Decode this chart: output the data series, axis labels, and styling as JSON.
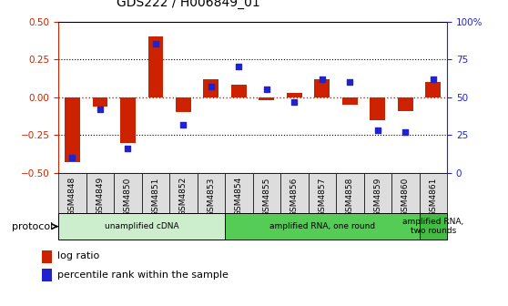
{
  "title": "GDS222 / H006849_01",
  "samples": [
    "GSM4848",
    "GSM4849",
    "GSM4850",
    "GSM4851",
    "GSM4852",
    "GSM4853",
    "GSM4854",
    "GSM4855",
    "GSM4856",
    "GSM4857",
    "GSM4858",
    "GSM4859",
    "GSM4860",
    "GSM4861"
  ],
  "log_ratio": [
    -0.43,
    -0.06,
    -0.3,
    0.4,
    -0.1,
    0.12,
    0.08,
    -0.02,
    0.03,
    0.12,
    -0.05,
    -0.15,
    -0.09,
    0.1
  ],
  "percentile_rank": [
    10,
    42,
    16,
    85,
    32,
    57,
    70,
    55,
    47,
    62,
    60,
    28,
    27,
    62
  ],
  "ylim_left": [
    -0.5,
    0.5
  ],
  "ylim_right": [
    0,
    100
  ],
  "yticks_left": [
    -0.5,
    -0.25,
    0,
    0.25,
    0.5
  ],
  "yticks_right": [
    0,
    25,
    50,
    75,
    100
  ],
  "ytick_labels_right": [
    "0",
    "25",
    "50",
    "75",
    "100%"
  ],
  "hlines": [
    0.25,
    -0.25
  ],
  "zero_line": 0.0,
  "bar_color_red": "#cc2200",
  "bar_color_blue": "#2222cc",
  "protocol_groups": [
    {
      "label": "unamplified cDNA",
      "start": 0,
      "end": 5,
      "color": "#cceecc"
    },
    {
      "label": "amplified RNA, one round",
      "start": 6,
      "end": 12,
      "color": "#55cc55"
    },
    {
      "label": "amplified RNA,\ntwo rounds",
      "start": 13,
      "end": 13,
      "color": "#44bb44"
    }
  ],
  "protocol_label": "protocol",
  "legend_items": [
    {
      "label": "log ratio",
      "color": "#cc2200"
    },
    {
      "label": "percentile rank within the sample",
      "color": "#2222cc"
    }
  ],
  "bar_width": 0.55,
  "dot_size": 22,
  "background_color": "#ffffff",
  "plot_bg_color": "#ffffff",
  "cell_bg_color": "#dddddd",
  "spine_color": "#000000"
}
